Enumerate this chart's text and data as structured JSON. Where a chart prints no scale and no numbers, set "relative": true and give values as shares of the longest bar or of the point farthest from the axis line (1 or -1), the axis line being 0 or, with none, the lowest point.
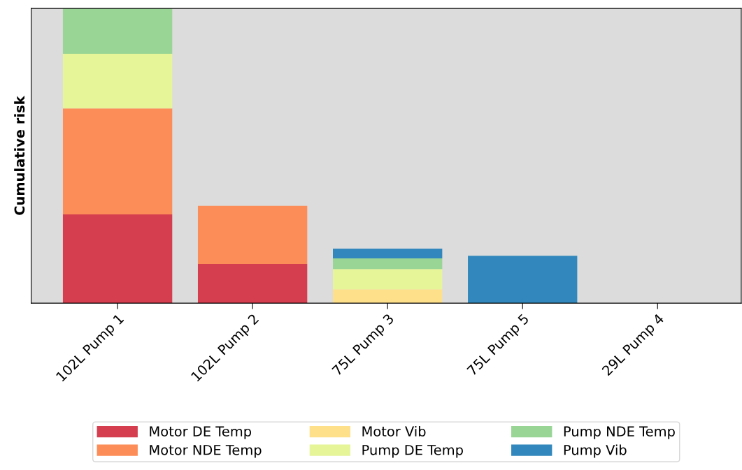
{
  "chart_data": {
    "type": "bar",
    "stacked": true,
    "relative": true,
    "ylabel": "Cumulative risk",
    "categories": [
      "102L Pump 1",
      "102L Pump 2",
      "75L Pump 3",
      "75L Pump 5",
      "29L Pump 4"
    ],
    "series": [
      {
        "name": "Motor DE Temp",
        "color": "#d53e4f",
        "values": [
          0.301,
          0.133,
          0,
          0,
          0
        ]
      },
      {
        "name": "Motor NDE Temp",
        "color": "#fc8d59",
        "values": [
          0.36,
          0.197,
          0,
          0,
          0
        ]
      },
      {
        "name": "Motor Vib",
        "color": "#fee08b",
        "values": [
          0,
          0,
          0.047,
          0,
          0
        ]
      },
      {
        "name": "Pump DE Temp",
        "color": "#e6f598",
        "values": [
          0.185,
          0,
          0.069,
          0,
          0
        ]
      },
      {
        "name": "Pump NDE Temp",
        "color": "#99d594",
        "values": [
          0.154,
          0,
          0.036,
          0,
          0
        ]
      },
      {
        "name": "Pump Vib",
        "color": "#3288bd",
        "values": [
          0,
          0,
          0.033,
          0.161,
          0
        ]
      }
    ],
    "legend": "bottom",
    "grid": false
  }
}
